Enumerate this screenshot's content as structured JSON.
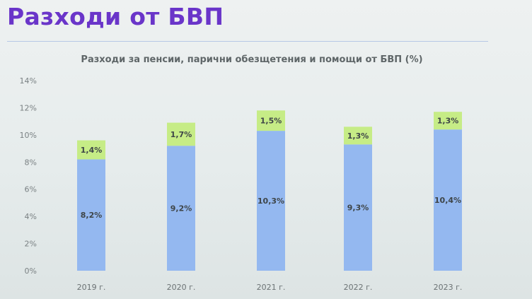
{
  "slide": {
    "title": "Разходи от БВП"
  },
  "chart_data": {
    "type": "bar",
    "stacked": true,
    "title": "Разходи за пенсии, парични обезщетения и помощи от БВП (%)",
    "categories": [
      "2019 г.",
      "2020 г.",
      "2021 г.",
      "2022 г.",
      "2023 г."
    ],
    "series": [
      {
        "values": [
          8.2,
          9.2,
          10.3,
          9.3,
          10.4
        ],
        "labels": [
          "8,2%",
          "9,2%",
          "10,3%",
          "9,3%",
          "10,4%"
        ],
        "color": "#94b8f0"
      },
      {
        "values": [
          1.4,
          1.7,
          1.5,
          1.3,
          1.3
        ],
        "labels": [
          "1,4%",
          "1,7%",
          "1,5%",
          "1,3%",
          "1,3%"
        ],
        "color": "#c6ec86"
      }
    ],
    "ylim": [
      0,
      14
    ],
    "yticks": [
      0,
      2,
      4,
      6,
      8,
      10,
      12,
      14
    ],
    "ytick_labels": [
      "0%",
      "2%",
      "4%",
      "6%",
      "8%",
      "10%",
      "12%",
      "14%"
    ],
    "grid": false,
    "legend": "none"
  }
}
